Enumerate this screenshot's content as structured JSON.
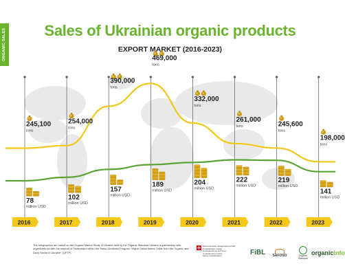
{
  "sidebar_tab": "ORGANIC SALES",
  "title": "Sales of Ukrainian organic products",
  "subtitle": "EXPORT MARKET (2016-2023)",
  "colors": {
    "brand_green": "#6ab42d",
    "tons_line": "#f2c718",
    "usd_line": "#5aa232",
    "year_tag": "#f5c81c",
    "map": "#e9e9e9"
  },
  "chart_data": {
    "type": "line",
    "title": "Sales of Ukrainian organic products",
    "subtitle": "EXPORT MARKET (2016-2023)",
    "categories": [
      "2016",
      "2017",
      "2018",
      "2019",
      "2020",
      "2021",
      "2022",
      "2023"
    ],
    "series": [
      {
        "name": "tons",
        "values": [
          245100,
          254000,
          390000,
          469000,
          332000,
          261000,
          245600,
          198000
        ],
        "labels": [
          "245,100",
          "254,000",
          "390,000",
          "469,000",
          "332,000",
          "261,000",
          "245,600",
          "198,000"
        ],
        "unit": "tons",
        "icon": "money-bag-icon"
      },
      {
        "name": "million USD",
        "values": [
          78,
          102,
          157,
          189,
          204,
          222,
          219,
          141
        ],
        "labels": [
          "78",
          "102",
          "157",
          "189",
          "204",
          "222",
          "219",
          "141"
        ],
        "unit": "million USD",
        "icon": "coin-stack-icon"
      }
    ],
    "grid": false,
    "legend": "none"
  },
  "footnote": "The infographics are based on the Organic Market Study of Ukraine held by the Organic Standard Ukraine in partnership with organicinfo.ua with the support of Switzerland within the Swiss-Ukrainian Program \"Higher Value Added Trade from the Organic and Dairy Sector in Ukraine\" (QFTP).",
  "logos": {
    "swiss": "Schweizerische Eidgenossenschaft Confédération suisse Confederazione Svizzera Confederaziun svizra",
    "swiss_sub": "Swiss Confederation",
    "fibl": "FiBL",
    "safoso": "SAFOSO",
    "organic_standard": "Organic Standard",
    "organicinfo_a": "organic",
    "organicinfo_b": "info"
  }
}
